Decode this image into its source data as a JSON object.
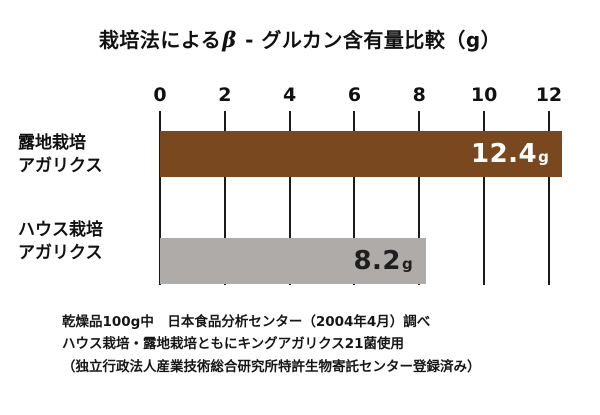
{
  "title": {
    "pre": "栽培法による",
    "beta": "β",
    "post": " - グルカン含有量比較（g）"
  },
  "chart_data": {
    "type": "bar",
    "orientation": "horizontal",
    "title": "栽培法によるβ-グルカン含有量比較（g）",
    "categories": [
      "露地栽培アガリクス",
      "ハウス栽培アガリクス"
    ],
    "category_lines": [
      [
        "露地栽培",
        "アガリクス"
      ],
      [
        "ハウス栽培",
        "アガリクス"
      ]
    ],
    "values": [
      12.4,
      8.2
    ],
    "value_texts": [
      "12.4",
      "8.2"
    ],
    "unit": "g",
    "axis_ticks": [
      "0",
      "2",
      "4",
      "6",
      "8",
      "10",
      "12"
    ],
    "xlim": [
      0,
      12.65
    ],
    "bar_colors": [
      "#7a481e",
      "#aeaba9"
    ],
    "value_label_colors": [
      "#ffffff",
      "#1e1e1e"
    ],
    "gridline_color": "#1a1a1a",
    "grid": true,
    "legend": false
  },
  "footnotes": [
    "乾燥品100g中　日本食品分析センター（2004年4月）調べ",
    "ハウス栽培・露地栽培ともにキングアガリクス21菌使用",
    "（独立行政法人産業技術総合研究所特許生物寄託センター登録済み）"
  ]
}
